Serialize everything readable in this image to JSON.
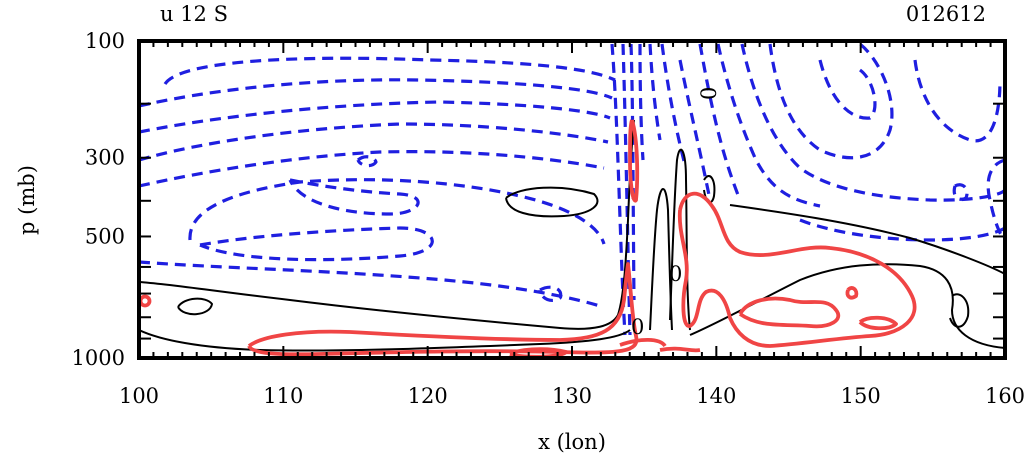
{
  "chart_data": {
    "type": "contour",
    "title_left": "u 12 S",
    "title_right": "012612",
    "xlabel": "x (lon)",
    "ylabel": "p (mb)",
    "xlim": [
      100,
      160
    ],
    "ylim": [
      1000,
      100
    ],
    "x_ticks": [
      "100",
      "110",
      "120",
      "130",
      "140",
      "150",
      "160"
    ],
    "y_ticks": [
      "100",
      "300",
      "500",
      "1000"
    ],
    "contour_labels": [
      "0",
      "0",
      "0"
    ],
    "series": [
      {
        "style": "negative",
        "color": "#1f1fe0"
      },
      {
        "style": "zero",
        "color": "#000000"
      },
      {
        "style": "positive",
        "color": "#f04545"
      }
    ]
  }
}
